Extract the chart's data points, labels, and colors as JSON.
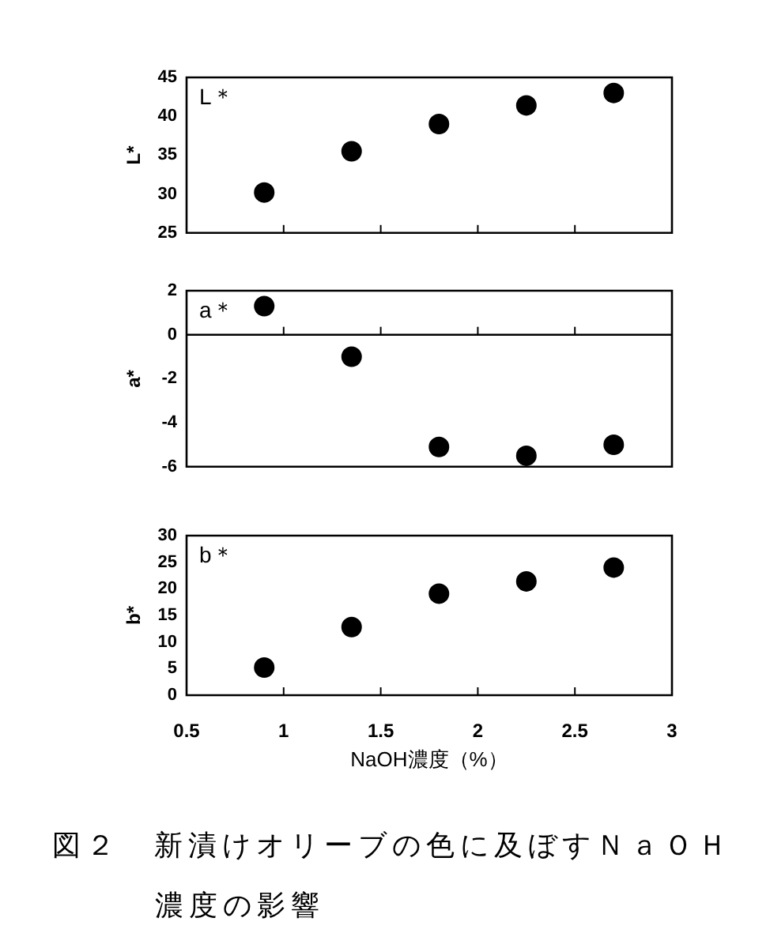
{
  "chart_data": [
    {
      "type": "scatter",
      "title": "L＊",
      "ylabel": "L*",
      "x": [
        0.9,
        1.35,
        1.8,
        2.25,
        2.7
      ],
      "series": [
        {
          "color": "#000000",
          "values": [
            30.2,
            35.5,
            39.0,
            41.4,
            43.0
          ]
        }
      ],
      "xlim": [
        0.5,
        3
      ],
      "xticks": [
        0.5,
        1,
        1.5,
        2,
        2.5,
        3
      ],
      "ylim": [
        25,
        45
      ],
      "yticks": [
        25,
        30,
        35,
        40,
        45
      ],
      "tick_labels": "y",
      "marker": "circle"
    },
    {
      "type": "scatter",
      "title": "a＊",
      "ylabel": "a*",
      "x": [
        0.9,
        1.35,
        1.8,
        2.25,
        2.7
      ],
      "series": [
        {
          "color": "#000000",
          "values": [
            1.3,
            -1.0,
            -5.1,
            -5.5,
            -5.0
          ]
        }
      ],
      "xlim": [
        0.5,
        3
      ],
      "xticks": [
        0.5,
        1,
        1.5,
        2,
        2.5,
        3
      ],
      "ylim": [
        -6,
        2
      ],
      "yticks": [
        -6,
        -4,
        -2,
        0,
        2
      ],
      "tick_labels": "y",
      "marker": "circle",
      "ref_lines": [
        {
          "axis": "y",
          "value": 0
        }
      ]
    },
    {
      "type": "scatter",
      "title": "b＊",
      "xlabel": "NaOH濃度（%）",
      "ylabel": "b*",
      "x": [
        0.9,
        1.35,
        1.8,
        2.25,
        2.7
      ],
      "series": [
        {
          "color": "#000000",
          "values": [
            5.2,
            12.8,
            19.1,
            21.4,
            24.0
          ]
        }
      ],
      "xlim": [
        0.5,
        3
      ],
      "xticks": [
        0.5,
        1,
        1.5,
        2,
        2.5,
        3
      ],
      "ylim": [
        0,
        30
      ],
      "yticks": [
        0,
        5,
        10,
        15,
        20,
        25,
        30
      ],
      "marker": "circle",
      "annotations": [
        "図２　新漬けオリーブの色に及ぼすＮａＯＨ濃度の影響"
      ]
    }
  ]
}
